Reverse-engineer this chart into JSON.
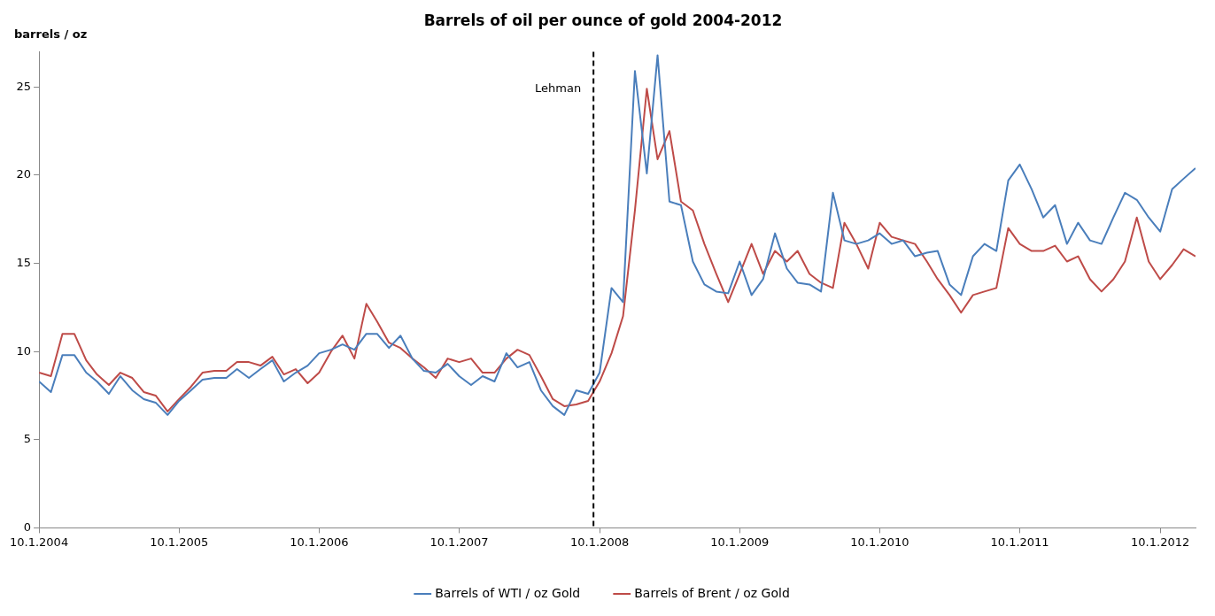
{
  "chart_data": {
    "type": "line",
    "title": "Barrels of oil per ounce of gold 2004-2012",
    "ylabel": "barrels / oz",
    "x": [
      "2004-10",
      "2004-11",
      "2004-12",
      "2005-01",
      "2005-02",
      "2005-03",
      "2005-04",
      "2005-05",
      "2005-06",
      "2005-07",
      "2005-08",
      "2005-09",
      "2005-10",
      "2005-11",
      "2005-12",
      "2006-01",
      "2006-02",
      "2006-03",
      "2006-04",
      "2006-05",
      "2006-06",
      "2006-07",
      "2006-08",
      "2006-09",
      "2006-10",
      "2006-11",
      "2006-12",
      "2007-01",
      "2007-02",
      "2007-03",
      "2007-04",
      "2007-05",
      "2007-06",
      "2007-07",
      "2007-08",
      "2007-09",
      "2007-10",
      "2007-11",
      "2007-12",
      "2008-01",
      "2008-02",
      "2008-03",
      "2008-04",
      "2008-05",
      "2008-06",
      "2008-07",
      "2008-08",
      "2008-09",
      "2008-10",
      "2008-11",
      "2008-12",
      "2009-01",
      "2009-02",
      "2009-03",
      "2009-04",
      "2009-05",
      "2009-06",
      "2009-07",
      "2009-08",
      "2009-09",
      "2009-10",
      "2009-11",
      "2009-12",
      "2010-01",
      "2010-02",
      "2010-03",
      "2010-04",
      "2010-05",
      "2010-06",
      "2010-07",
      "2010-08",
      "2010-09",
      "2010-10",
      "2010-11",
      "2010-12",
      "2011-01",
      "2011-02",
      "2011-03",
      "2011-04",
      "2011-05",
      "2011-06",
      "2011-07",
      "2011-08",
      "2011-09",
      "2011-10",
      "2011-11",
      "2011-12",
      "2012-01",
      "2012-02",
      "2012-03",
      "2012-04",
      "2012-05",
      "2012-06",
      "2012-07",
      "2012-08",
      "2012-09",
      "2012-10",
      "2012-11",
      "2012-12",
      "2013-01"
    ],
    "series": [
      {
        "name": "Barrels of WTI / oz Gold",
        "color": "#4a7ebb",
        "values": [
          8.3,
          7.7,
          9.8,
          9.8,
          8.8,
          8.3,
          7.6,
          8.6,
          7.8,
          7.3,
          7.1,
          6.4,
          7.2,
          7.8,
          8.4,
          8.5,
          8.5,
          9.0,
          8.5,
          9.0,
          9.5,
          8.3,
          8.8,
          9.2,
          9.9,
          10.1,
          10.4,
          10.1,
          11.0,
          11.0,
          10.2,
          10.9,
          9.6,
          8.9,
          8.8,
          9.3,
          8.6,
          8.1,
          8.6,
          8.3,
          9.9,
          9.1,
          9.4,
          7.8,
          6.9,
          6.4,
          7.8,
          7.6,
          8.8,
          13.6,
          12.8,
          25.9,
          20.1,
          26.8,
          18.5,
          18.3,
          15.1,
          13.8,
          13.4,
          13.3,
          15.1,
          13.2,
          14.1,
          16.7,
          14.7,
          13.9,
          13.8,
          13.4,
          19.0,
          16.3,
          16.1,
          16.3,
          16.7,
          16.1,
          16.3,
          15.4,
          15.6,
          15.7,
          13.8,
          13.2,
          15.4,
          16.1,
          15.7,
          19.7,
          20.6,
          19.2,
          17.6,
          18.3,
          16.1,
          17.3,
          16.3,
          16.1,
          17.6,
          19.0,
          18.6,
          17.6,
          16.8,
          19.2,
          19.8,
          20.4
        ]
      },
      {
        "name": "Barrels of Brent / oz Gold",
        "color": "#be4b48",
        "values": [
          8.8,
          8.6,
          11.0,
          11.0,
          9.5,
          8.7,
          8.1,
          8.8,
          8.5,
          7.7,
          7.5,
          6.6,
          7.3,
          8.0,
          8.8,
          8.9,
          8.9,
          9.4,
          9.4,
          9.2,
          9.7,
          8.7,
          9.0,
          8.2,
          8.8,
          10.0,
          10.9,
          9.6,
          12.7,
          11.7,
          10.5,
          10.2,
          9.6,
          9.1,
          8.5,
          9.6,
          9.4,
          9.6,
          8.8,
          8.8,
          9.6,
          10.1,
          9.8,
          8.6,
          7.3,
          6.9,
          7.0,
          7.2,
          8.3,
          9.9,
          12.0,
          18.0,
          24.9,
          20.9,
          22.5,
          18.5,
          18.0,
          16.1,
          14.4,
          12.8,
          14.4,
          16.1,
          14.4,
          15.7,
          15.1,
          15.7,
          14.4,
          13.9,
          13.6,
          17.3,
          16.1,
          14.7,
          17.3,
          16.5,
          16.3,
          16.1,
          15.1,
          14.1,
          13.2,
          12.2,
          13.2,
          13.4,
          13.6,
          17.0,
          16.1,
          15.7,
          15.7,
          16.0,
          15.1,
          15.4,
          14.1,
          13.4,
          14.1,
          15.1,
          17.6,
          15.1,
          14.1,
          14.9,
          15.8,
          15.4
        ]
      }
    ],
    "xlim": [
      "2004-10-01",
      "2013-01-01"
    ],
    "xticks": [
      {
        "value": "2004-10-01",
        "label": "10.1.2004"
      },
      {
        "value": "2005-10-01",
        "label": "10.1.2005"
      },
      {
        "value": "2006-10-01",
        "label": "10.1.2006"
      },
      {
        "value": "2007-10-01",
        "label": "10.1.2007"
      },
      {
        "value": "2008-10-01",
        "label": "10.1.2008"
      },
      {
        "value": "2009-10-01",
        "label": "10.1.2009"
      },
      {
        "value": "2010-10-01",
        "label": "10.1.2010"
      },
      {
        "value": "2011-10-01",
        "label": "10.1.2011"
      },
      {
        "value": "2012-10-01",
        "label": "10.1.2012"
      }
    ],
    "ylim": [
      0,
      27
    ],
    "yticks": [
      0,
      5,
      10,
      15,
      20,
      25
    ],
    "ref_lines": [
      {
        "axis": "x",
        "value": "2008-09-15",
        "label": "Lehman",
        "color": "#000000",
        "line_style": "dashed"
      }
    ],
    "grid": false,
    "legend": "bottom",
    "marker": "none",
    "line_style": "solid"
  }
}
